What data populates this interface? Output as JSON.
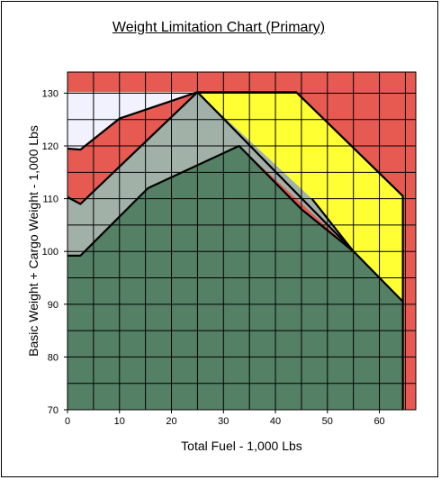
{
  "chart_data": {
    "type": "area",
    "title": "Weight Limitation Chart (Primary)",
    "xlabel": "Total Fuel - 1,000 Lbs",
    "ylabel": "Basic Weight + Cargo Weight  - 1,000 Lbs",
    "xlim": [
      0,
      67
    ],
    "ylim": [
      70,
      134
    ],
    "xticks": [
      0,
      10,
      20,
      30,
      40,
      50,
      60
    ],
    "yticks": [
      70,
      80,
      90,
      100,
      110,
      120,
      130
    ],
    "grid": "on",
    "grid_step_x": 5,
    "grid_step_y": 5,
    "regions": [
      {
        "color": "#e65a52",
        "points": [
          [
            0,
            134
          ],
          [
            67,
            134
          ],
          [
            67,
            70
          ],
          [
            0,
            70
          ]
        ]
      },
      {
        "color": "#f2f2ff",
        "points": [
          [
            0,
            119.5
          ],
          [
            2.5,
            119.3
          ],
          [
            10,
            125.2
          ],
          [
            25,
            130.2
          ],
          [
            0,
            130.2
          ]
        ]
      },
      {
        "color": "#ffff33",
        "points": [
          [
            25,
            130.2
          ],
          [
            44,
            130.2
          ],
          [
            64.5,
            110.5
          ],
          [
            64.5,
            90.5
          ],
          [
            25,
            130.2
          ]
        ]
      },
      {
        "color": "#a1b1a8",
        "points": [
          [
            0,
            110.3
          ],
          [
            2.5,
            109
          ],
          [
            25,
            130.2
          ],
          [
            47,
            110
          ],
          [
            55,
            100
          ],
          [
            33,
            120
          ],
          [
            15.5,
            112
          ],
          [
            2.5,
            99.2
          ],
          [
            0,
            99.2
          ]
        ]
      },
      {
        "color": "#548066",
        "points": [
          [
            0,
            70
          ],
          [
            0,
            99.2
          ],
          [
            2.5,
            99.2
          ],
          [
            15.5,
            112
          ],
          [
            33,
            120
          ],
          [
            45,
            108
          ],
          [
            55,
            100
          ],
          [
            64.5,
            90.5
          ],
          [
            64.5,
            70
          ]
        ]
      }
    ],
    "boundary_lines": [
      [
        [
          0,
          119.5
        ],
        [
          2.5,
          119.3
        ],
        [
          10,
          125.2
        ],
        [
          25,
          130.2
        ],
        [
          44,
          130.2
        ],
        [
          64.5,
          110.5
        ],
        [
          64.5,
          70
        ]
      ],
      [
        [
          0,
          110.3
        ],
        [
          2.5,
          109
        ],
        [
          25,
          130.2
        ],
        [
          64.5,
          90.5
        ]
      ],
      [
        [
          0,
          99.2
        ],
        [
          2.5,
          99.2
        ],
        [
          15.5,
          112
        ],
        [
          33,
          120
        ],
        [
          45,
          108
        ],
        [
          55,
          100
        ]
      ],
      [
        [
          47,
          110
        ],
        [
          55,
          100
        ]
      ]
    ],
    "colors": {
      "red": "#e65a52",
      "light": "#f2f2ff",
      "yellow": "#ffff33",
      "gray_green": "#a1b1a8",
      "dark_green": "#548066"
    }
  }
}
